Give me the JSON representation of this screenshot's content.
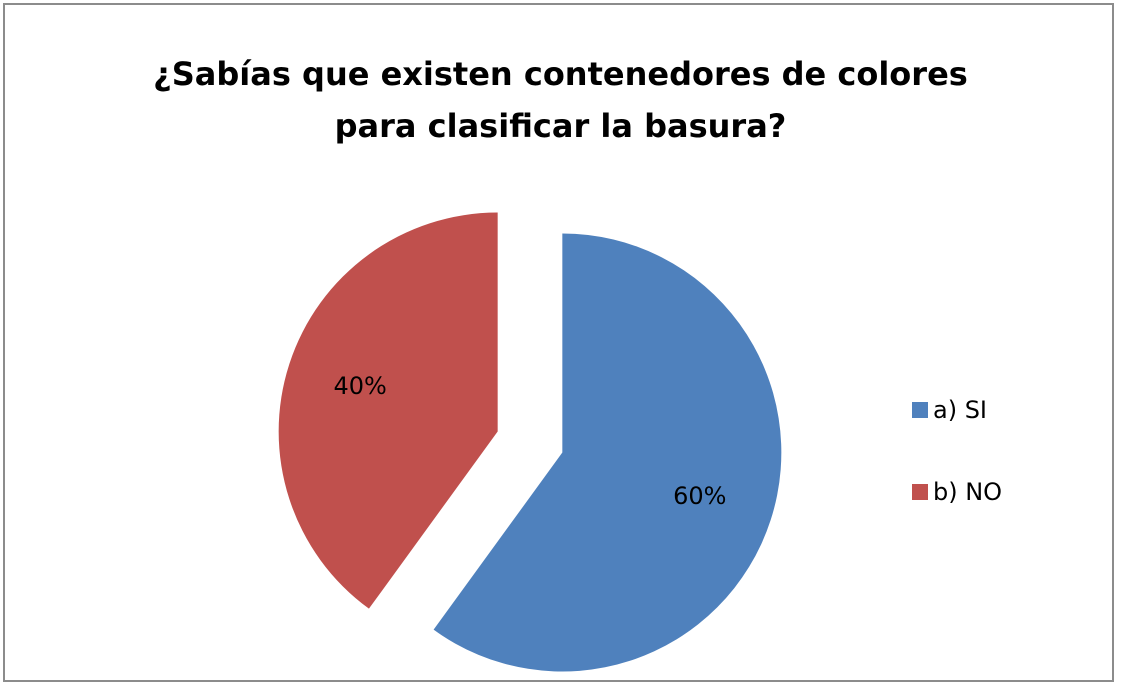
{
  "chart_data": {
    "type": "pie",
    "title_lines": [
      "¿Sabías que existen contenedores de colores",
      "para clasificar la basura?"
    ],
    "categories": [
      "a) SI",
      "b) NO"
    ],
    "values": [
      60,
      40
    ],
    "data_labels": [
      "60%",
      "40%"
    ],
    "colors": [
      "#4f81bd",
      "#c0504d"
    ],
    "exploded": true,
    "legend_position": "right"
  }
}
